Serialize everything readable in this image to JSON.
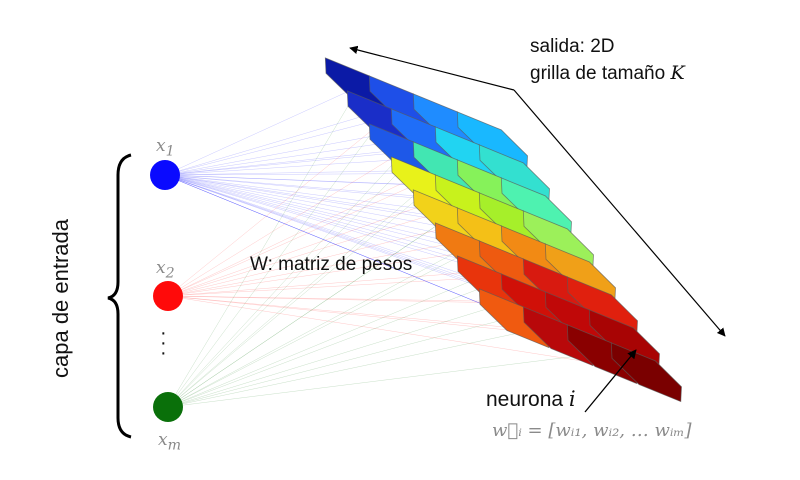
{
  "input_layer": {
    "label": "capa de entrada",
    "nodes": [
      {
        "label": "x",
        "sub": "1",
        "color": "#0a0aff"
      },
      {
        "label": "x",
        "sub": "2",
        "color": "#ff0a0a"
      },
      {
        "label": "x",
        "sub": "m",
        "color": "#0a700a"
      }
    ],
    "dots": "·\n·\n·"
  },
  "weights": {
    "label_prefix": "W",
    "label_rest": ": matriz de pesos"
  },
  "output": {
    "line1": "salida: 2D",
    "line2_text": "grilla de tamaño ",
    "line2_var": "K"
  },
  "neuron": {
    "label_text": "neurona ",
    "label_var": "i",
    "formula": "w⃗ᵢ = [wᵢ₁, wᵢ₂, … wᵢₘ]"
  },
  "grid_colors": [
    [
      "#0b1aa6",
      "#1e4fe8",
      "#1f8cff",
      "#19b8ff"
    ],
    [
      "#1a2ec8",
      "#1f6ef8",
      "#21d4f2",
      "#33e0d0"
    ],
    [
      "#1e58e8",
      "#42e6b2",
      "#86f25a",
      "#4ef2b0"
    ],
    [
      "#e8f21a",
      "#c8f21c",
      "#a6ef2a",
      "#9cf05a"
    ],
    [
      "#f2d21a",
      "#f4c017",
      "#f28a14",
      "#f0a018"
    ],
    [
      "#f07a12",
      "#ee5a10",
      "#d81a10",
      "#e0200e"
    ],
    [
      "#e8340c",
      "#d01008",
      "#c00808",
      "#a80404"
    ],
    [
      "#f05a10",
      "#b8080a",
      "#8a0000",
      "#7a0000"
    ]
  ]
}
